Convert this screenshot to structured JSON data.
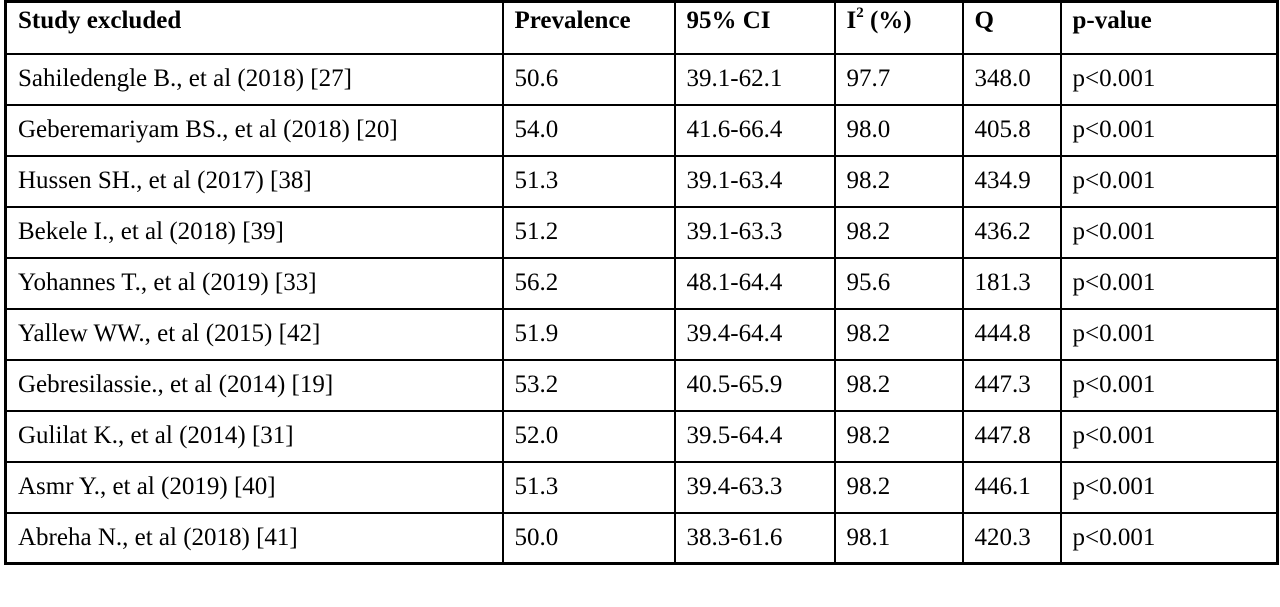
{
  "table": {
    "headers": {
      "study": "Study excluded",
      "prevalence": "Prevalence",
      "ci": "95% CI",
      "i2_base": "I",
      "i2_exp": "2",
      "i2_rest": " (%)",
      "q": "Q",
      "p": "p-value"
    },
    "rows": [
      {
        "study": "Sahiledengle B., et al (2018) [27]",
        "prevalence": "50.6",
        "ci": "39.1-62.1",
        "i2": "97.7",
        "q": "348.0",
        "p": "p<0.001"
      },
      {
        "study": "Geberemariyam BS., et al (2018) [20]",
        "prevalence": "54.0",
        "ci": "41.6-66.4",
        "i2": "98.0",
        "q": "405.8",
        "p": "p<0.001"
      },
      {
        "study": "Hussen SH., et al (2017) [38]",
        "prevalence": "51.3",
        "ci": "39.1-63.4",
        "i2": "98.2",
        "q": "434.9",
        "p": "p<0.001"
      },
      {
        "study": "Bekele I., et al (2018) [39]",
        "prevalence": "51.2",
        "ci": "39.1-63.3",
        "i2": "98.2",
        "q": "436.2",
        "p": "p<0.001"
      },
      {
        "study": "Yohannes T., et  al (2019) [33]",
        "prevalence": "56.2",
        "ci": "48.1-64.4",
        "i2": "95.6",
        "q": "181.3",
        "p": "p<0.001"
      },
      {
        "study": "Yallew WW., et al (2015) [42]",
        "prevalence": "51.9",
        "ci": "39.4-64.4",
        "i2": "98.2",
        "q": "444.8",
        "p": "p<0.001"
      },
      {
        "study": "Gebresilassie., et al (2014) [19]",
        "prevalence": "53.2",
        "ci": "40.5-65.9",
        "i2": "98.2",
        "q": "447.3",
        "p": "p<0.001"
      },
      {
        "study": "Gulilat K., et al (2014) [31]",
        "prevalence": "52.0",
        "ci": "39.5-64.4",
        "i2": "98.2",
        "q": "447.8",
        "p": "p<0.001"
      },
      {
        "study": "Asmr Y., et al (2019) [40]",
        "prevalence": "51.3",
        "ci": "39.4-63.3",
        "i2": "98.2",
        "q": "446.1",
        "p": "p<0.001"
      },
      {
        "study": "Abreha N., et al (2018) [41]",
        "prevalence": "50.0",
        "ci": "38.3-61.6",
        "i2": "98.1",
        "q": "420.3",
        "p": "p<0.001"
      }
    ]
  }
}
